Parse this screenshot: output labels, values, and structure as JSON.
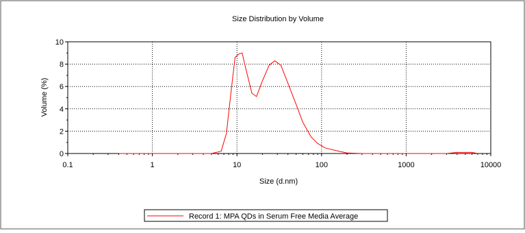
{
  "chart_data": {
    "type": "line",
    "title": "Size Distribution by Volume",
    "xlabel": "Size (d.nm)",
    "ylabel": "Volume (%)",
    "xscale": "log",
    "xlim": [
      0.1,
      10000
    ],
    "ylim": [
      0,
      10
    ],
    "x_tick_labels": [
      "0.1",
      "1",
      "10",
      "100",
      "1000",
      "10000"
    ],
    "x_tick_values": [
      0.1,
      1,
      10,
      100,
      1000,
      10000
    ],
    "y_tick_labels": [
      "0",
      "2",
      "4",
      "6",
      "8",
      "10"
    ],
    "y_tick_values": [
      0,
      2,
      4,
      6,
      8,
      10
    ],
    "grid": true,
    "legend_position": "bottom-center",
    "series": [
      {
        "name": "Record 1: MPA QDs in Serum Free Media Average",
        "color": "#ff0000",
        "points": [
          [
            0.4,
            0
          ],
          [
            1,
            0
          ],
          [
            5,
            0
          ],
          [
            6.5,
            0.2
          ],
          [
            7.5,
            1.8
          ],
          [
            8.5,
            5.5
          ],
          [
            9.5,
            8.6
          ],
          [
            10.5,
            8.9
          ],
          [
            11.5,
            9.0
          ],
          [
            13,
            7.3
          ],
          [
            15,
            5.4
          ],
          [
            17,
            5.1
          ],
          [
            20,
            6.5
          ],
          [
            24,
            7.9
          ],
          [
            28,
            8.3
          ],
          [
            33,
            7.9
          ],
          [
            40,
            6.3
          ],
          [
            50,
            4.4
          ],
          [
            60,
            2.8
          ],
          [
            75,
            1.5
          ],
          [
            90,
            0.9
          ],
          [
            110,
            0.5
          ],
          [
            150,
            0.25
          ],
          [
            200,
            0.05
          ],
          [
            300,
            0
          ],
          [
            1000,
            0
          ],
          [
            3000,
            0
          ],
          [
            4000,
            0.1
          ],
          [
            5000,
            0.1
          ],
          [
            6000,
            0.1
          ],
          [
            7000,
            0
          ]
        ]
      }
    ]
  }
}
